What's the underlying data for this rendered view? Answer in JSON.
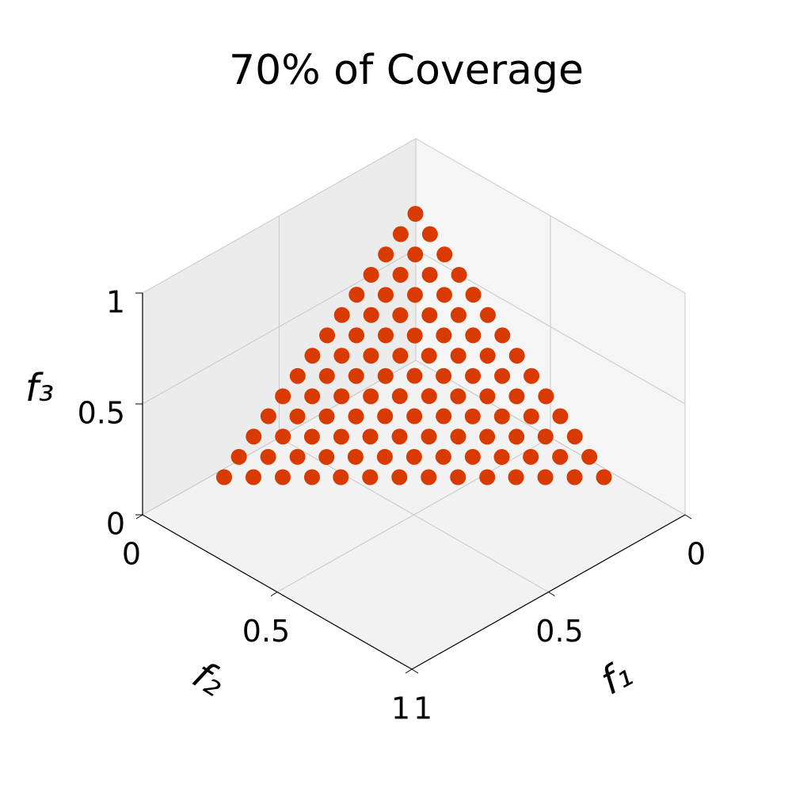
{
  "chart_data": {
    "type": "scatter3d",
    "title": "70% of Coverage",
    "xlabel": "f₁",
    "ylabel": "f₂",
    "zlabel": "f₃",
    "xlim": [
      0,
      1
    ],
    "ylim": [
      0,
      1
    ],
    "zlim": [
      0,
      1
    ],
    "xticks": [
      0,
      0.5,
      1
    ],
    "yticks": [
      0,
      0.5,
      1
    ],
    "zticks": [
      0,
      0.5,
      1
    ],
    "grid": true,
    "color": "#d83a00",
    "x": [
      0.8,
      0.746,
      0.692,
      0.638,
      0.585,
      0.531,
      0.477,
      0.423,
      0.369,
      0.315,
      0.262,
      0.208,
      0.154,
      0.1,
      0.746,
      0.692,
      0.638,
      0.585,
      0.531,
      0.477,
      0.423,
      0.369,
      0.315,
      0.262,
      0.208,
      0.154,
      0.1,
      0.692,
      0.638,
      0.585,
      0.531,
      0.477,
      0.423,
      0.369,
      0.315,
      0.262,
      0.208,
      0.154,
      0.1,
      0.638,
      0.585,
      0.531,
      0.477,
      0.423,
      0.369,
      0.315,
      0.262,
      0.208,
      0.154,
      0.1,
      0.585,
      0.531,
      0.477,
      0.423,
      0.369,
      0.315,
      0.262,
      0.208,
      0.154,
      0.1,
      0.531,
      0.477,
      0.423,
      0.369,
      0.315,
      0.262,
      0.208,
      0.154,
      0.1,
      0.477,
      0.423,
      0.369,
      0.315,
      0.262,
      0.208,
      0.154,
      0.1,
      0.423,
      0.369,
      0.315,
      0.262,
      0.208,
      0.154,
      0.1,
      0.369,
      0.315,
      0.262,
      0.208,
      0.154,
      0.1,
      0.315,
      0.262,
      0.208,
      0.154,
      0.1,
      0.262,
      0.208,
      0.154,
      0.1,
      0.208,
      0.154,
      0.1,
      0.154,
      0.1,
      0.1
    ],
    "y": [
      0.1,
      0.154,
      0.208,
      0.262,
      0.315,
      0.369,
      0.423,
      0.477,
      0.531,
      0.585,
      0.638,
      0.692,
      0.746,
      0.8,
      0.1,
      0.154,
      0.208,
      0.262,
      0.315,
      0.369,
      0.423,
      0.477,
      0.531,
      0.585,
      0.638,
      0.692,
      0.746,
      0.1,
      0.154,
      0.208,
      0.262,
      0.315,
      0.369,
      0.423,
      0.477,
      0.531,
      0.585,
      0.638,
      0.692,
      0.1,
      0.154,
      0.208,
      0.262,
      0.315,
      0.369,
      0.423,
      0.477,
      0.531,
      0.585,
      0.638,
      0.1,
      0.154,
      0.208,
      0.262,
      0.315,
      0.369,
      0.423,
      0.477,
      0.531,
      0.585,
      0.1,
      0.154,
      0.208,
      0.262,
      0.315,
      0.369,
      0.423,
      0.477,
      0.531,
      0.1,
      0.154,
      0.208,
      0.262,
      0.315,
      0.369,
      0.423,
      0.477,
      0.1,
      0.154,
      0.208,
      0.262,
      0.315,
      0.369,
      0.423,
      0.1,
      0.154,
      0.208,
      0.262,
      0.315,
      0.369,
      0.1,
      0.154,
      0.208,
      0.262,
      0.315,
      0.1,
      0.154,
      0.208,
      0.262,
      0.1,
      0.154,
      0.208,
      0.1,
      0.154,
      0.1
    ],
    "z": [
      0.1,
      0.1,
      0.1,
      0.1,
      0.1,
      0.1,
      0.1,
      0.1,
      0.1,
      0.1,
      0.1,
      0.1,
      0.1,
      0.1,
      0.154,
      0.154,
      0.154,
      0.154,
      0.154,
      0.154,
      0.154,
      0.154,
      0.154,
      0.154,
      0.154,
      0.154,
      0.154,
      0.208,
      0.208,
      0.208,
      0.208,
      0.208,
      0.208,
      0.208,
      0.208,
      0.208,
      0.208,
      0.208,
      0.208,
      0.262,
      0.262,
      0.262,
      0.262,
      0.262,
      0.262,
      0.262,
      0.262,
      0.262,
      0.262,
      0.262,
      0.315,
      0.315,
      0.315,
      0.315,
      0.315,
      0.315,
      0.315,
      0.315,
      0.315,
      0.315,
      0.369,
      0.369,
      0.369,
      0.369,
      0.369,
      0.369,
      0.369,
      0.369,
      0.369,
      0.423,
      0.423,
      0.423,
      0.423,
      0.423,
      0.423,
      0.423,
      0.423,
      0.477,
      0.477,
      0.477,
      0.477,
      0.477,
      0.477,
      0.477,
      0.531,
      0.531,
      0.531,
      0.531,
      0.531,
      0.531,
      0.585,
      0.585,
      0.585,
      0.585,
      0.585,
      0.638,
      0.638,
      0.638,
      0.638,
      0.692,
      0.692,
      0.692,
      0.746,
      0.746,
      0.8
    ]
  }
}
